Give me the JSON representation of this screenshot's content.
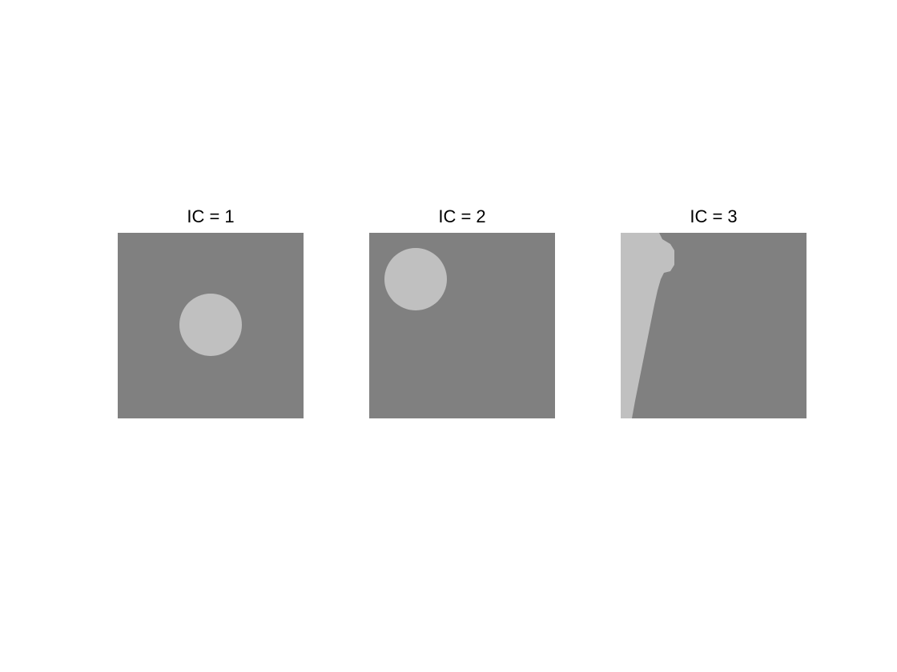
{
  "colors": {
    "background_region": "#808080",
    "foreground_region": "#c0c0c0",
    "page": "#ffffff"
  },
  "panels": [
    {
      "title": "IC = 1"
    },
    {
      "title": "IC = 2"
    },
    {
      "title": "IC = 3"
    }
  ]
}
